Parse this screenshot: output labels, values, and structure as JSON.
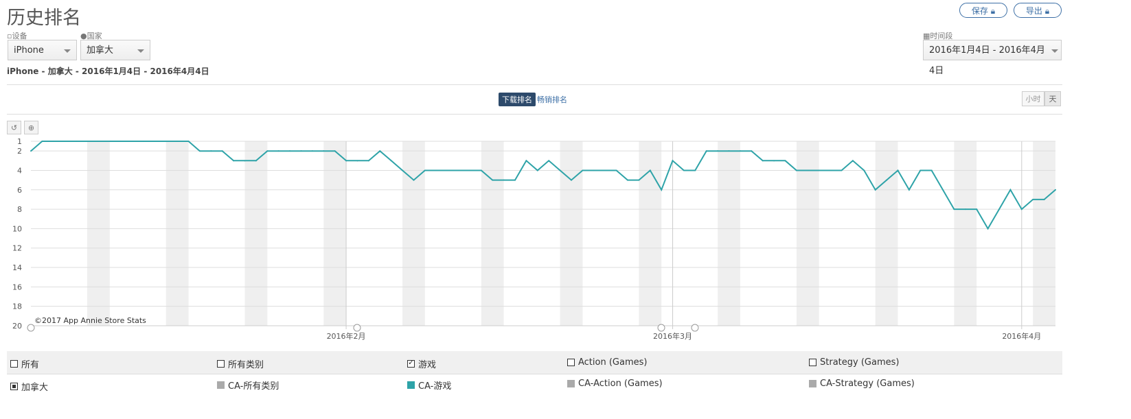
{
  "header": {
    "title": "历史排名",
    "save_label": "保存",
    "export_label": "导出"
  },
  "filters": {
    "device_label": "设备",
    "device_value": "iPhone",
    "country_label": "国家",
    "country_value": "加拿大",
    "period_label": "时间段",
    "period_value": "2016年1月4日 - 2016年4月4日"
  },
  "subtitle": "iPhone - 加拿大 - 2016年1月4日 - 2016年4月4日",
  "tabs": [
    {
      "label": "下载排名",
      "active": true
    },
    {
      "label": "畅销排名",
      "active": false
    }
  ],
  "granularity": [
    {
      "label": "小时",
      "active": false
    },
    {
      "label": "天",
      "active": true
    }
  ],
  "colors": {
    "line": "#2ea3a8",
    "weekend": "#efefef",
    "accent": "#2d4a6b"
  },
  "chart_data": {
    "type": "line",
    "watermark": "©2017 App Annie Store Stats",
    "x_start": "2016-01-04",
    "x_end": "2016-04-04",
    "x_ticks": [
      "2016年2月",
      "2016年3月",
      "2016年4月"
    ],
    "y_ticks": [
      1,
      2,
      4,
      6,
      8,
      10,
      12,
      14,
      16,
      18,
      20
    ],
    "ylim": [
      1,
      20
    ],
    "y_inverted": true,
    "grid": true,
    "weekend_shading": true,
    "series": [
      {
        "name": "CA-游戏",
        "values": [
          2,
          1,
          1,
          1,
          1,
          1,
          1,
          1,
          1,
          1,
          1,
          1,
          1,
          1,
          1,
          2,
          2,
          2,
          3,
          3,
          3,
          2,
          2,
          2,
          2,
          2,
          2,
          2,
          3,
          3,
          3,
          2,
          3,
          4,
          5,
          4,
          4,
          4,
          4,
          4,
          4,
          5,
          5,
          5,
          3,
          4,
          3,
          4,
          5,
          4,
          4,
          4,
          4,
          5,
          5,
          4,
          6,
          3,
          4,
          4,
          2,
          2,
          2,
          2,
          2,
          3,
          3,
          3,
          4,
          4,
          4,
          4,
          4,
          3,
          4,
          6,
          5,
          4,
          6,
          4,
          4,
          6,
          8,
          8,
          8,
          10,
          8,
          6,
          8,
          7,
          7,
          6
        ]
      }
    ]
  },
  "legend": {
    "header": [
      {
        "label": "所有",
        "checked": false
      },
      {
        "label": "所有类别",
        "checked": false
      },
      {
        "label": "游戏",
        "checked": true
      },
      {
        "label": "Action (Games)",
        "checked": false
      },
      {
        "label": "Strategy (Games)",
        "checked": false
      }
    ],
    "country": {
      "label": "加拿大"
    },
    "series": [
      {
        "label": "CA-所有类别",
        "color": "#aaaaaa"
      },
      {
        "label": "CA-游戏",
        "color": "#2ea3a8"
      },
      {
        "label": "CA-Action (Games)",
        "color": "#aaaaaa"
      },
      {
        "label": "CA-Strategy (Games)",
        "color": "#aaaaaa"
      }
    ]
  }
}
